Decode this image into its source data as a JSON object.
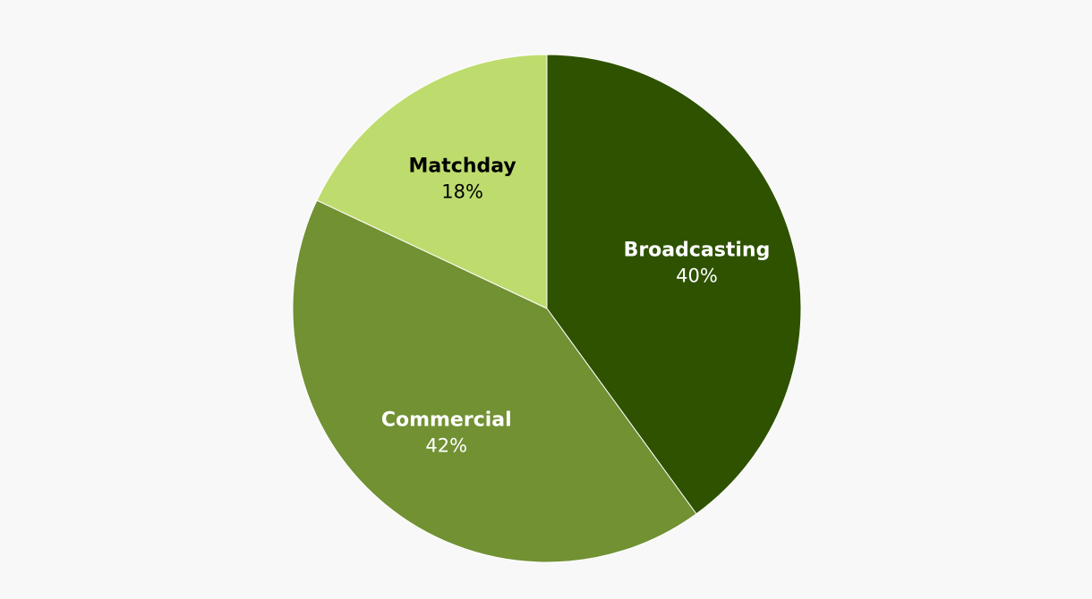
{
  "chart_data": {
    "type": "pie",
    "categories": [
      "Broadcasting",
      "Commercial",
      "Matchday"
    ],
    "values": [
      40,
      42,
      18
    ],
    "value_labels": [
      "40%",
      "42%",
      "18%"
    ],
    "colors": [
      "#2e5200",
      "#719133",
      "#bedc6e"
    ],
    "label_colors": [
      "#ffffff",
      "#ffffff",
      "#000000"
    ],
    "start_angle_deg": 0,
    "direction": "clockwise",
    "legend": "none"
  }
}
